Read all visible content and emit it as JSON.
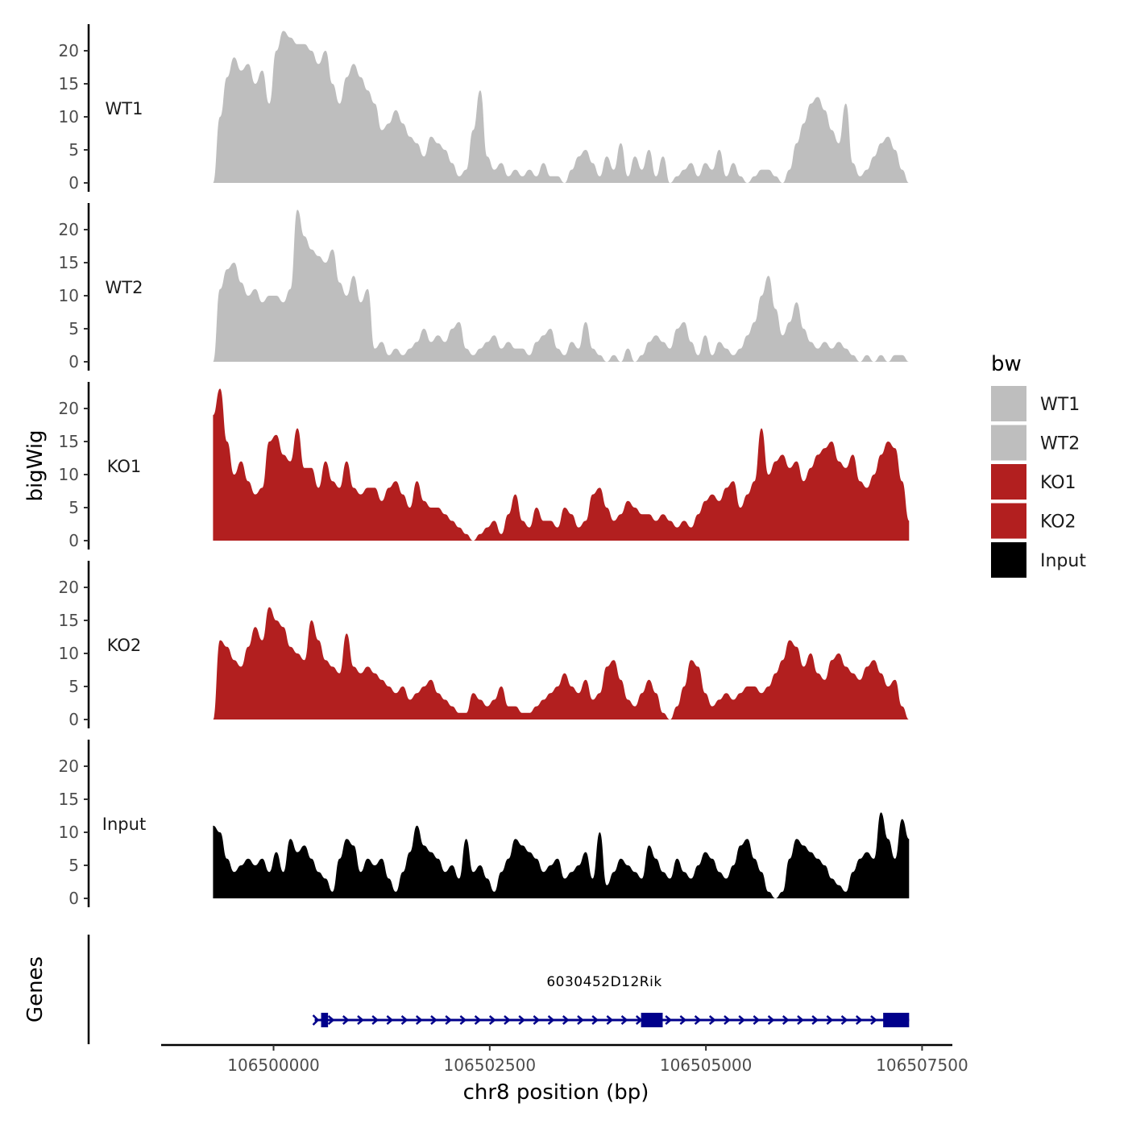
{
  "chart_data": {
    "type": "area",
    "ylabel": "bigWig",
    "xlabel": "chr8 position (bp)",
    "ylim": [
      0,
      24
    ],
    "yticks": [
      0,
      5,
      10,
      15,
      20
    ],
    "xlim": [
      106498700,
      106507850
    ],
    "xticks": [
      106500000,
      106502500,
      106505000,
      106507500
    ],
    "xtick_labels": [
      "106500000",
      "106502500",
      "106505000",
      "106507500"
    ],
    "legend": {
      "title": "bw",
      "placement": "right",
      "entries": [
        {
          "label": "WT1",
          "color": "#bebebe"
        },
        {
          "label": "WT2",
          "color": "#bebebe"
        },
        {
          "label": "KO1",
          "color": "#b21f1f"
        },
        {
          "label": "KO2",
          "color": "#b21f1f"
        },
        {
          "label": "Input",
          "color": "#000000"
        }
      ]
    },
    "series": [
      {
        "name": "WT1",
        "color": "#bebebe",
        "x_start": 106499300,
        "x_end": 106507350,
        "values": [
          0,
          10,
          16,
          19,
          17,
          18,
          15,
          17,
          12,
          20,
          23,
          22,
          21,
          21,
          20,
          18,
          20,
          15,
          12,
          16,
          18,
          16,
          14,
          12,
          8,
          9,
          11,
          9,
          7,
          6,
          4,
          7,
          6,
          5,
          3,
          1,
          2,
          8,
          14,
          4,
          2,
          3,
          1,
          2,
          1,
          2,
          1,
          3,
          1,
          1,
          0,
          2,
          4,
          5,
          3,
          1,
          4,
          2,
          6,
          1,
          4,
          2,
          5,
          1,
          4,
          0,
          1,
          2,
          3,
          1,
          3,
          2,
          5,
          1,
          3,
          1,
          0,
          1,
          2,
          2,
          1,
          0,
          2,
          6,
          9,
          12,
          13,
          11,
          8,
          6,
          12,
          3,
          1,
          2,
          4,
          6,
          7,
          5,
          2,
          0
        ]
      },
      {
        "name": "WT2",
        "color": "#bebebe",
        "x_start": 106499300,
        "x_end": 106507350,
        "values": [
          0,
          11,
          14,
          15,
          12,
          10,
          11,
          9,
          10,
          10,
          9,
          11,
          23,
          19,
          17,
          16,
          15,
          17,
          12,
          10,
          13,
          9,
          11,
          2,
          3,
          1,
          2,
          1,
          2,
          3,
          5,
          3,
          4,
          3,
          5,
          6,
          2,
          1,
          2,
          3,
          4,
          2,
          3,
          2,
          2,
          1,
          3,
          4,
          5,
          2,
          1,
          3,
          2,
          6,
          2,
          1,
          0,
          1,
          0,
          2,
          0,
          1,
          3,
          4,
          3,
          2,
          5,
          6,
          3,
          1,
          4,
          1,
          3,
          2,
          1,
          2,
          4,
          6,
          10,
          13,
          8,
          4,
          6,
          9,
          5,
          3,
          2,
          3,
          2,
          3,
          2,
          1,
          0,
          1,
          0,
          1,
          0,
          1,
          1,
          0
        ]
      },
      {
        "name": "KO1",
        "color": "#b21f1f",
        "x_start": 106499300,
        "x_end": 106507350,
        "values": [
          19,
          23,
          15,
          10,
          12,
          9,
          7,
          8,
          15,
          16,
          13,
          12,
          17,
          11,
          11,
          8,
          12,
          9,
          8,
          12,
          8,
          7,
          8,
          8,
          6,
          8,
          9,
          7,
          5,
          9,
          6,
          5,
          5,
          4,
          3,
          2,
          1,
          0,
          1,
          2,
          3,
          1,
          4,
          7,
          3,
          2,
          5,
          3,
          3,
          2,
          5,
          4,
          2,
          3,
          7,
          8,
          5,
          3,
          4,
          6,
          5,
          4,
          4,
          3,
          4,
          3,
          2,
          3,
          2,
          4,
          6,
          7,
          6,
          8,
          9,
          5,
          7,
          9,
          17,
          10,
          12,
          13,
          11,
          12,
          9,
          11,
          13,
          14,
          15,
          12,
          11,
          13,
          9,
          8,
          10,
          13,
          15,
          14,
          9,
          3
        ]
      },
      {
        "name": "KO2",
        "color": "#b21f1f",
        "x_start": 106499300,
        "x_end": 106507350,
        "values": [
          0,
          12,
          11,
          9,
          8,
          11,
          14,
          12,
          17,
          15,
          14,
          11,
          10,
          9,
          15,
          12,
          9,
          8,
          7,
          13,
          8,
          7,
          8,
          7,
          6,
          5,
          4,
          5,
          3,
          4,
          5,
          6,
          4,
          3,
          2,
          1,
          1,
          4,
          3,
          2,
          3,
          5,
          2,
          2,
          1,
          1,
          2,
          3,
          4,
          5,
          7,
          5,
          4,
          6,
          3,
          4,
          8,
          9,
          6,
          3,
          2,
          4,
          6,
          4,
          1,
          0,
          2,
          5,
          9,
          8,
          4,
          2,
          3,
          4,
          3,
          4,
          5,
          5,
          4,
          5,
          7,
          9,
          12,
          11,
          8,
          10,
          7,
          6,
          9,
          10,
          8,
          7,
          6,
          8,
          9,
          7,
          5,
          6,
          2,
          0
        ]
      },
      {
        "name": "Input",
        "color": "#000000",
        "x_start": 106499300,
        "x_end": 106507350,
        "values": [
          11,
          10,
          6,
          4,
          5,
          6,
          5,
          6,
          4,
          7,
          4,
          9,
          7,
          8,
          6,
          4,
          3,
          1,
          6,
          9,
          8,
          4,
          6,
          5,
          6,
          3,
          1,
          4,
          7,
          11,
          8,
          7,
          6,
          4,
          5,
          3,
          9,
          4,
          5,
          3,
          1,
          4,
          6,
          9,
          8,
          7,
          6,
          4,
          5,
          6,
          3,
          4,
          5,
          7,
          3,
          10,
          2,
          4,
          6,
          5,
          4,
          3,
          8,
          6,
          4,
          3,
          6,
          4,
          3,
          5,
          7,
          6,
          4,
          3,
          5,
          8,
          9,
          6,
          4,
          1,
          0,
          1,
          6,
          9,
          8,
          7,
          6,
          5,
          3,
          2,
          1,
          4,
          6,
          7,
          6,
          13,
          9,
          6,
          12,
          9
        ]
      }
    ],
    "track_labels": [
      "WT1",
      "WT2",
      "KO1",
      "KO2",
      "Input"
    ],
    "genes": {
      "label": "Genes",
      "gene_name": "6030452D12Rik",
      "strand": "+",
      "color": "#00008b",
      "start": 106500550,
      "end": 106507350,
      "exons": [
        [
          106500550,
          106500630
        ],
        [
          106504250,
          106504500
        ],
        [
          106507050,
          106507350
        ]
      ]
    }
  }
}
